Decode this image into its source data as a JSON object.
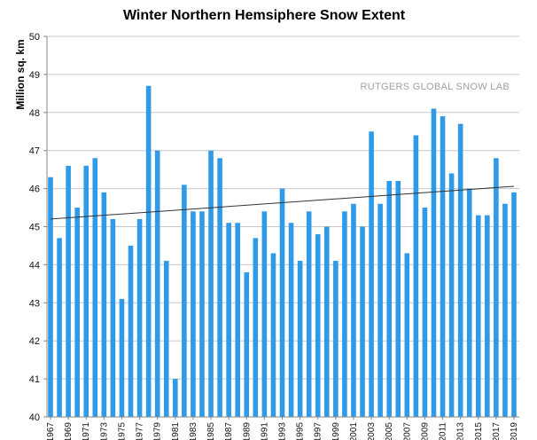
{
  "chart_data": {
    "type": "bar",
    "title": "Winter Northern Hemsiphere Snow Extent",
    "xlabel": "",
    "ylabel": "Million sq. km",
    "watermark": "RUTGERS GLOBAL SNOW LAB",
    "ylim": [
      40,
      50
    ],
    "yticks": [
      40,
      41,
      42,
      43,
      44,
      45,
      46,
      47,
      48,
      49,
      50
    ],
    "grid": "horizontal",
    "bar_color": "#2e9ae8",
    "trend_color": "#333333",
    "x": [
      1967,
      1968,
      1969,
      1970,
      1971,
      1972,
      1973,
      1974,
      1975,
      1976,
      1977,
      1978,
      1979,
      1980,
      1981,
      1982,
      1983,
      1984,
      1985,
      1986,
      1987,
      1988,
      1989,
      1990,
      1991,
      1992,
      1993,
      1994,
      1995,
      1996,
      1997,
      1998,
      1999,
      2000,
      2001,
      2002,
      2003,
      2004,
      2005,
      2006,
      2007,
      2008,
      2009,
      2010,
      2011,
      2012,
      2013,
      2014,
      2015,
      2016,
      2017,
      2018,
      2019
    ],
    "values": [
      46.3,
      44.7,
      46.6,
      45.5,
      46.6,
      46.8,
      45.9,
      45.2,
      43.1,
      44.5,
      45.2,
      48.7,
      47.0,
      44.1,
      41.0,
      46.1,
      45.4,
      45.4,
      47.0,
      46.8,
      45.1,
      45.1,
      43.8,
      44.7,
      45.4,
      44.3,
      46.0,
      45.1,
      44.1,
      45.4,
      44.8,
      45.0,
      44.1,
      45.4,
      45.6,
      45.0,
      47.5,
      45.6,
      46.2,
      46.2,
      44.3,
      47.4,
      45.5,
      48.1,
      47.9,
      46.4,
      47.7,
      46.0,
      45.3,
      45.3,
      46.8,
      45.6,
      45.9
    ],
    "xtick_labels": [
      "1967",
      "1969",
      "1971",
      "1973",
      "1975",
      "1977",
      "1979",
      "1981",
      "1983",
      "1985",
      "1987",
      "1989",
      "1991",
      "1993",
      "1995",
      "1997",
      "1999",
      "2001",
      "2003",
      "2005",
      "2007",
      "2009",
      "2011",
      "2013",
      "2015",
      "2017",
      "2019"
    ],
    "trend": {
      "x": [
        1967,
        2019
      ],
      "y": [
        45.2,
        46.06
      ]
    }
  }
}
